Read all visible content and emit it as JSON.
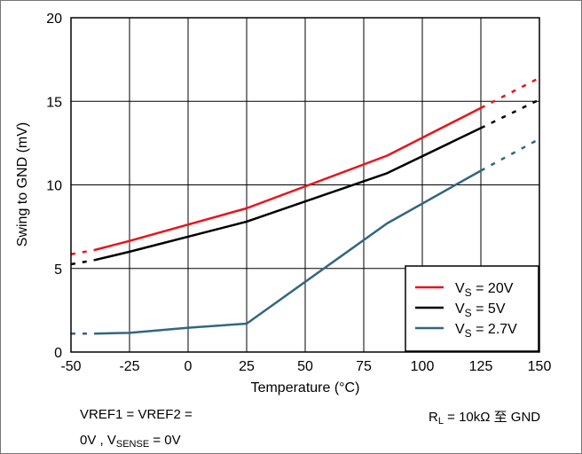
{
  "chart_data": {
    "type": "line",
    "xlabel": "Temperature (°C)",
    "ylabel": "Swing to GND (mV)",
    "xlim": [
      -50,
      150
    ],
    "ylim": [
      0,
      20
    ],
    "x_ticks": [
      "-50",
      "-25",
      "0",
      "25",
      "50",
      "75",
      "100",
      "125",
      "150"
    ],
    "y_ticks": [
      "0",
      "5",
      "10",
      "15",
      "20"
    ],
    "grid": true,
    "legend_position": "bottom-right",
    "series": [
      {
        "name": "V_S = 20V",
        "legend_main": "V",
        "legend_sub": "S",
        "legend_rest": " = 20V",
        "color": "#e8141b",
        "x": [
          -40,
          -25,
          25,
          85,
          125
        ],
        "y": [
          6.1,
          6.65,
          8.6,
          11.75,
          14.6
        ],
        "extrapolated_left": [
          [
            -50,
            5.85
          ],
          [
            -40,
            6.1
          ]
        ],
        "extrapolated_right": [
          [
            125,
            14.6
          ],
          [
            150,
            16.4
          ]
        ]
      },
      {
        "name": "V_S = 5V",
        "legend_main": "V",
        "legend_sub": "S",
        "legend_rest": " = 5V",
        "color": "#000000",
        "x": [
          -40,
          -25,
          25,
          85,
          125
        ],
        "y": [
          5.5,
          6.0,
          7.8,
          10.7,
          13.4
        ],
        "extrapolated_left": [
          [
            -50,
            5.25
          ],
          [
            -40,
            5.5
          ]
        ],
        "extrapolated_right": [
          [
            125,
            13.4
          ],
          [
            150,
            15.1
          ]
        ]
      },
      {
        "name": "V_S = 2.7V",
        "legend_main": "V",
        "legend_sub": "S",
        "legend_rest": " = 2.7V",
        "color": "#336680",
        "x": [
          -40,
          -25,
          0,
          25,
          85,
          125
        ],
        "y": [
          1.1,
          1.15,
          1.45,
          1.7,
          7.7,
          10.85
        ],
        "extrapolated_left": [
          [
            -50,
            1.1
          ],
          [
            -40,
            1.1
          ]
        ],
        "extrapolated_right": [
          [
            125,
            10.85
          ],
          [
            150,
            12.75
          ]
        ]
      }
    ]
  },
  "notes": {
    "vref_line1": "VREF1 = VREF2 =",
    "vref_line2_a": "0V , V",
    "vref_line2_sub": "SENSE",
    "vref_line2_b": " = 0V",
    "rl_a": "R",
    "rl_sub": "L",
    "rl_b": " = 10kΩ 至 GND"
  }
}
